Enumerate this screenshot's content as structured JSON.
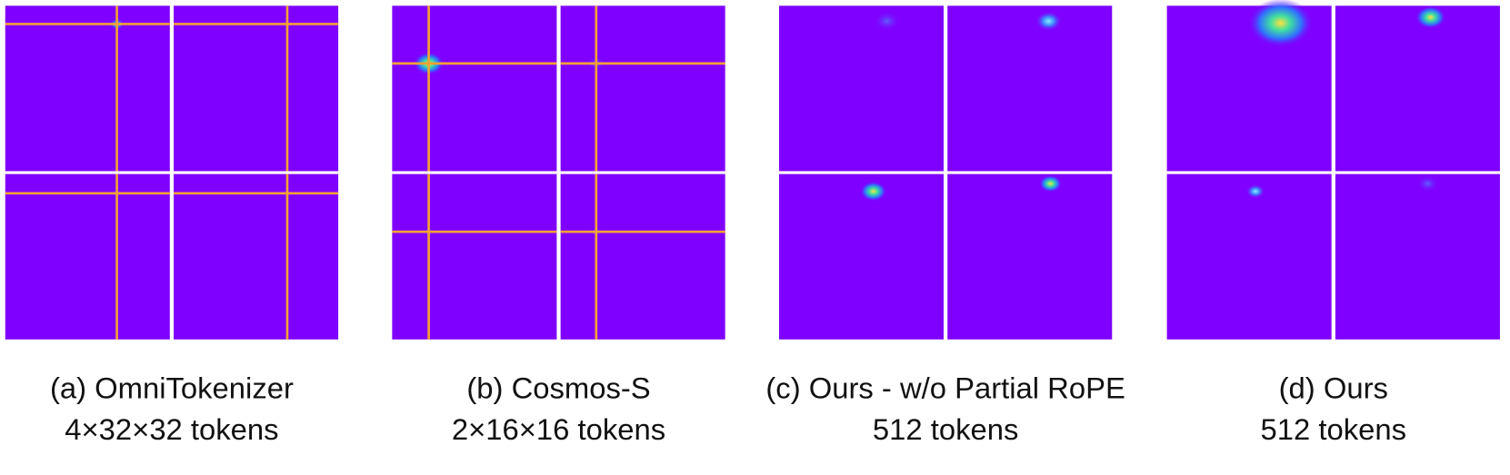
{
  "panels": [
    {
      "caption": "(a) OmniTokenizer",
      "tokens": "4×32×32 tokens"
    },
    {
      "caption": "(b) Cosmos-S",
      "tokens": "2×16×16 tokens"
    },
    {
      "caption": "(c) Ours - w/o Partial RoPE",
      "tokens": "512 tokens"
    },
    {
      "caption": "(d) Ours",
      "tokens": "512 tokens"
    }
  ]
}
